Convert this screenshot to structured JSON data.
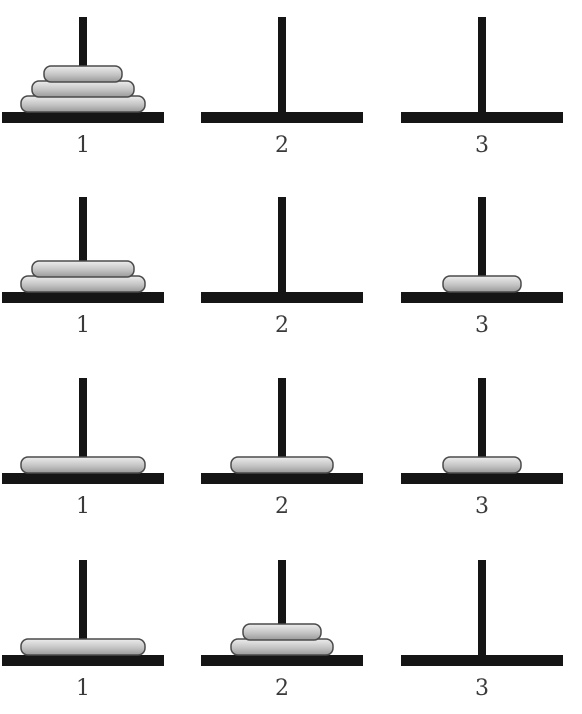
{
  "diagram": {
    "colors": {
      "post": "#151515",
      "disk_light": "#ededed",
      "disk_dark": "#9a9a9a",
      "disk_outline": "#4a4a4a",
      "label": "#3a3a3a"
    },
    "rows": [
      {
        "pegs": [
          {
            "label": "1",
            "disks": [
              3,
              2,
              1
            ]
          },
          {
            "label": "2",
            "disks": []
          },
          {
            "label": "3",
            "disks": []
          }
        ]
      },
      {
        "pegs": [
          {
            "label": "1",
            "disks": [
              3,
              2
            ]
          },
          {
            "label": "2",
            "disks": []
          },
          {
            "label": "3",
            "disks": [
              1
            ]
          }
        ]
      },
      {
        "pegs": [
          {
            "label": "1",
            "disks": [
              3
            ]
          },
          {
            "label": "2",
            "disks": [
              2
            ]
          },
          {
            "label": "3",
            "disks": [
              1
            ]
          }
        ]
      },
      {
        "pegs": [
          {
            "label": "1",
            "disks": [
              3
            ]
          },
          {
            "label": "2",
            "disks": [
              2,
              1
            ]
          },
          {
            "label": "3",
            "disks": []
          }
        ]
      }
    ]
  }
}
